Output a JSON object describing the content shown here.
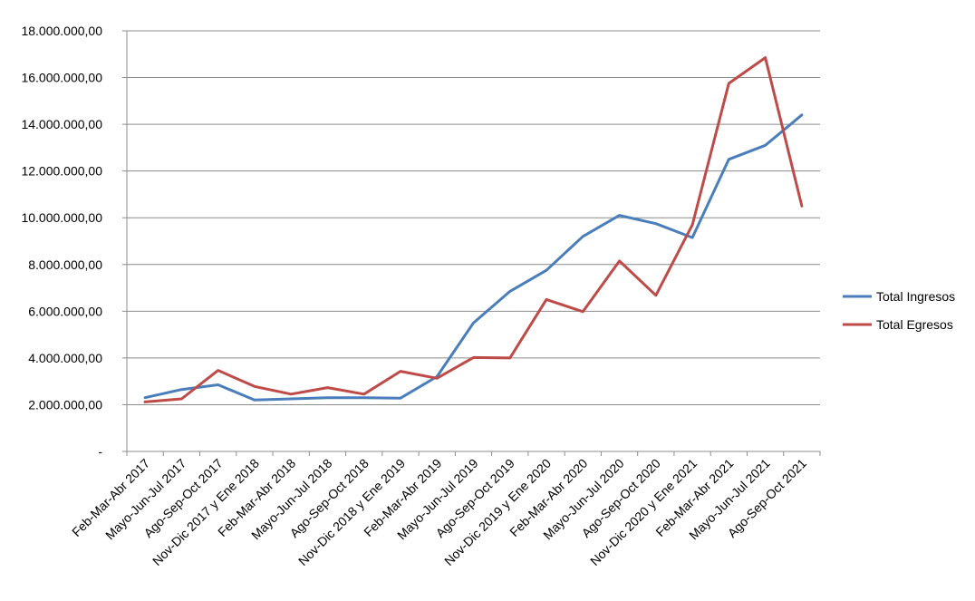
{
  "chart_data": {
    "type": "line",
    "title": "",
    "xlabel": "",
    "ylabel": "",
    "ylim": [
      0,
      18000000
    ],
    "y_tick_step": 2000000,
    "grid": "horizontal",
    "legend_position": "right",
    "y_tick_labels": [
      "-",
      "2.000.000,00",
      "4.000.000,00",
      "6.000.000,00",
      "8.000.000,00",
      "10.000.000,00",
      "12.000.000,00",
      "14.000.000,00",
      "16.000.000,00",
      "18.000.000,00"
    ],
    "categories": [
      "Feb-Mar-Abr 2017",
      "Mayo-Jun-Jul 2017",
      "Ago-Sep-Oct 2017",
      "Nov-Dic 2017 y Ene 2018",
      "Feb-Mar-Abr 2018",
      "Mayo-Jun-Jul 2018",
      "Ago-Sep-Oct 2018",
      "Nov-Dic 2018 y Ene 2019",
      "Feb-Mar-Abr 2019",
      "Mayo-Jun-Jul 2019",
      "Ago-Sep-Oct 2019",
      "Nov-Dic 2019 y Ene 2020",
      "Feb-Mar-Abr 2020",
      "Mayo-Jun-Jul 2020",
      "Ago-Sep-Oct 2020",
      "Nov-Dic 2020 y Ene 2021",
      "Feb-Mar-Abr 2021",
      "Mayo-Jun-Jul 2021",
      "Ago-Sep-Oct 2021"
    ],
    "series": [
      {
        "name": "Total Ingresos",
        "color": "#4a7ebb",
        "values": [
          2300000,
          2650000,
          2850000,
          2200000,
          2250000,
          2300000,
          2300000,
          2280000,
          3200000,
          5500000,
          6850000,
          7750000,
          9200000,
          10100000,
          9750000,
          9150000,
          12500000,
          13100000,
          14400000
        ]
      },
      {
        "name": "Total Egresos",
        "color": "#be4b48",
        "values": [
          2120000,
          2250000,
          3470000,
          2780000,
          2450000,
          2730000,
          2450000,
          3430000,
          3130000,
          4020000,
          4000000,
          6500000,
          5980000,
          8150000,
          6680000,
          9700000,
          15750000,
          16850000,
          10500000
        ]
      }
    ]
  }
}
